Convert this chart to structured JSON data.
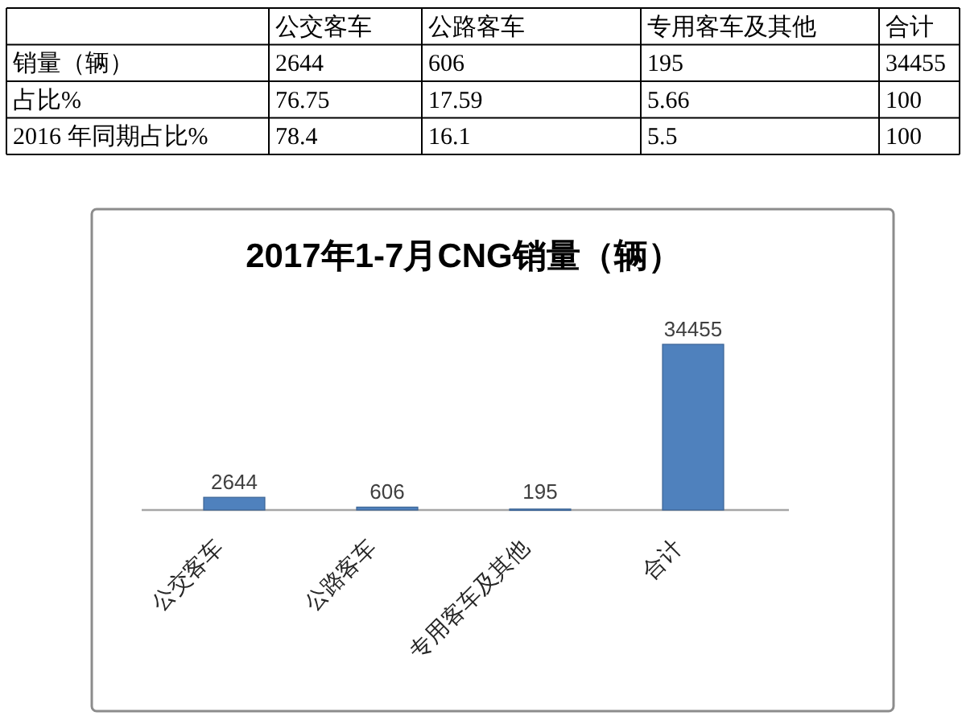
{
  "chart_data": [
    {
      "type": "other",
      "categories": [
        "公交客车",
        "公路客车",
        "专用客车及其他",
        "合计"
      ],
      "series": [
        {
          "name": "销量（辆）",
          "values": [
            2644,
            606,
            195,
            34455
          ]
        },
        {
          "name": "占比%",
          "values": [
            76.75,
            17.59,
            5.66,
            100
          ]
        },
        {
          "name": "2016 年同期占比%",
          "values": [
            78.4,
            16.1,
            5.5,
            100
          ]
        }
      ],
      "data_labels": true
    },
    {
      "type": "bar",
      "title": "2017年1-7月CNG销量（辆）",
      "categories": [
        "公交客车",
        "公路客车",
        "专用客车及其他",
        "合计"
      ],
      "values": [
        2644,
        606,
        195,
        34455
      ],
      "color": "#4f81bd",
      "data_labels": true
    }
  ]
}
